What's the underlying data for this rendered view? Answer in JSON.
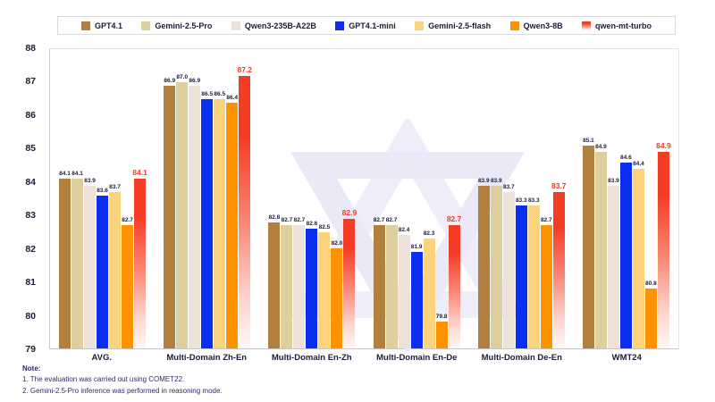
{
  "colors": {
    "background": "#ffffff",
    "text": "#1c1c38",
    "note_text": "#2b2b68",
    "highlight_red": "#f43b24",
    "watermark_light": "#efeffc",
    "watermark_dark": "#e7e7f7",
    "axis_border": "#c9c9c9"
  },
  "chart_data": {
    "type": "bar",
    "title": "",
    "xlabel": "",
    "ylabel": "",
    "ylim": [
      79,
      88
    ],
    "yticks": [
      79,
      80,
      81,
      82,
      83,
      84,
      85,
      86,
      87,
      88
    ],
    "grid": false,
    "legend_position": "top",
    "categories": [
      "AVG.",
      "Multi-Domain Zh-En",
      "Multi-Domain En-Zh",
      "Multi-Domain En-De",
      "Multi-Domain De-En",
      "WMT24"
    ],
    "series": [
      {
        "name": "GPT4.1",
        "color": "#b1803f",
        "highlight": false,
        "values": [
          84.1,
          86.9,
          82.8,
          82.7,
          83.9,
          85.1
        ]
      },
      {
        "name": "Gemini-2.5-Pro",
        "color": "#ddd09e",
        "highlight": false,
        "values": [
          84.1,
          87.0,
          82.7,
          82.7,
          83.9,
          84.9
        ]
      },
      {
        "name": "Qwen3-235B-A22B",
        "color": "#ece2da",
        "highlight": false,
        "values": [
          83.9,
          86.9,
          82.7,
          82.4,
          83.7,
          83.9
        ]
      },
      {
        "name": "GPT4.1-mini",
        "color": "#0a2ff0",
        "highlight": false,
        "values": [
          83.6,
          86.5,
          82.6,
          81.9,
          83.3,
          84.6
        ]
      },
      {
        "name": "Gemini-2.5-flash",
        "color": "#fcd37d",
        "highlight": false,
        "values": [
          83.7,
          86.5,
          82.5,
          82.3,
          83.3,
          84.4
        ]
      },
      {
        "name": "Qwen3-8B",
        "color": "#fd9303",
        "highlight": false,
        "values": [
          82.7,
          86.4,
          82.0,
          79.8,
          82.7,
          80.8
        ]
      },
      {
        "name": "qwen-mt-turbo",
        "color": "#f43b24",
        "highlight": true,
        "gradient": true,
        "values": [
          84.1,
          87.2,
          82.9,
          82.7,
          83.7,
          84.9
        ]
      }
    ]
  },
  "note": {
    "heading": "Note:",
    "line1": "1. The evaluation was carried out using COMET22.",
    "line2": "2. Gemini-2.5-Pro inference was performed in reasoning mode."
  }
}
